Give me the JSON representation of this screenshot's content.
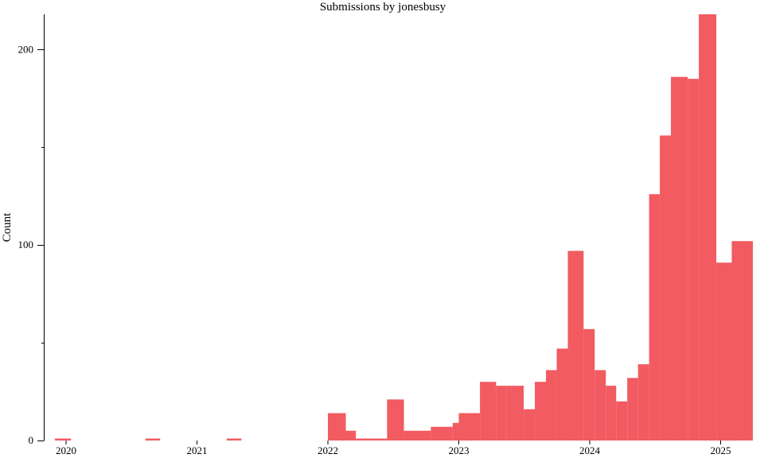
{
  "chart_data": {
    "type": "bar",
    "title": "Submissions by jonesbusy",
    "xlabel": "",
    "ylabel": "Count",
    "ylim": [
      0,
      218
    ],
    "y_ticks": [
      0,
      100,
      200
    ],
    "x_ticks": [
      "2020",
      "2021",
      "2022",
      "2023",
      "2024",
      "2025"
    ],
    "grid": false,
    "color": "#F15B61",
    "bins": [
      {
        "start": "2019-12-01",
        "end": "2020-01-15",
        "value": 1
      },
      {
        "start": "2020-08-10",
        "end": "2020-09-20",
        "value": 1
      },
      {
        "start": "2021-03-25",
        "end": "2021-05-05",
        "value": 1
      },
      {
        "start": "2022-01-01",
        "end": "2022-02-20",
        "value": 14
      },
      {
        "start": "2022-02-20",
        "end": "2022-03-20",
        "value": 5
      },
      {
        "start": "2022-03-20",
        "end": "2022-06-15",
        "value": 1
      },
      {
        "start": "2022-06-15",
        "end": "2022-08-01",
        "value": 21
      },
      {
        "start": "2022-08-01",
        "end": "2022-10-15",
        "value": 5
      },
      {
        "start": "2022-10-15",
        "end": "2022-12-15",
        "value": 7
      },
      {
        "start": "2022-12-15",
        "end": "2023-01-01",
        "value": 9
      },
      {
        "start": "2023-01-01",
        "end": "2023-03-01",
        "value": 14
      },
      {
        "start": "2023-03-01",
        "end": "2023-04-15",
        "value": 30
      },
      {
        "start": "2023-04-15",
        "end": "2023-05-15",
        "value": 28
      },
      {
        "start": "2023-05-15",
        "end": "2023-07-01",
        "value": 28
      },
      {
        "start": "2023-07-01",
        "end": "2023-08-01",
        "value": 16
      },
      {
        "start": "2023-08-01",
        "end": "2023-09-01",
        "value": 30
      },
      {
        "start": "2023-09-01",
        "end": "2023-10-01",
        "value": 36
      },
      {
        "start": "2023-10-01",
        "end": "2023-11-01",
        "value": 47
      },
      {
        "start": "2023-11-01",
        "end": "2023-12-15",
        "value": 97
      },
      {
        "start": "2023-12-15",
        "end": "2024-01-15",
        "value": 57
      },
      {
        "start": "2024-01-15",
        "end": "2024-02-15",
        "value": 36
      },
      {
        "start": "2024-02-15",
        "end": "2024-03-15",
        "value": 28
      },
      {
        "start": "2024-03-15",
        "end": "2024-04-15",
        "value": 20
      },
      {
        "start": "2024-04-15",
        "end": "2024-05-15",
        "value": 32
      },
      {
        "start": "2024-05-15",
        "end": "2024-06-15",
        "value": 39
      },
      {
        "start": "2024-06-15",
        "end": "2024-07-15",
        "value": 126
      },
      {
        "start": "2024-07-15",
        "end": "2024-08-15",
        "value": 156
      },
      {
        "start": "2024-08-15",
        "end": "2024-10-01",
        "value": 186
      },
      {
        "start": "2024-10-01",
        "end": "2024-11-01",
        "value": 185
      },
      {
        "start": "2024-11-01",
        "end": "2024-12-20",
        "value": 218
      },
      {
        "start": "2024-12-20",
        "end": "2025-02-01",
        "value": 91
      },
      {
        "start": "2025-02-01",
        "end": "2025-04-01",
        "value": 102
      }
    ]
  }
}
